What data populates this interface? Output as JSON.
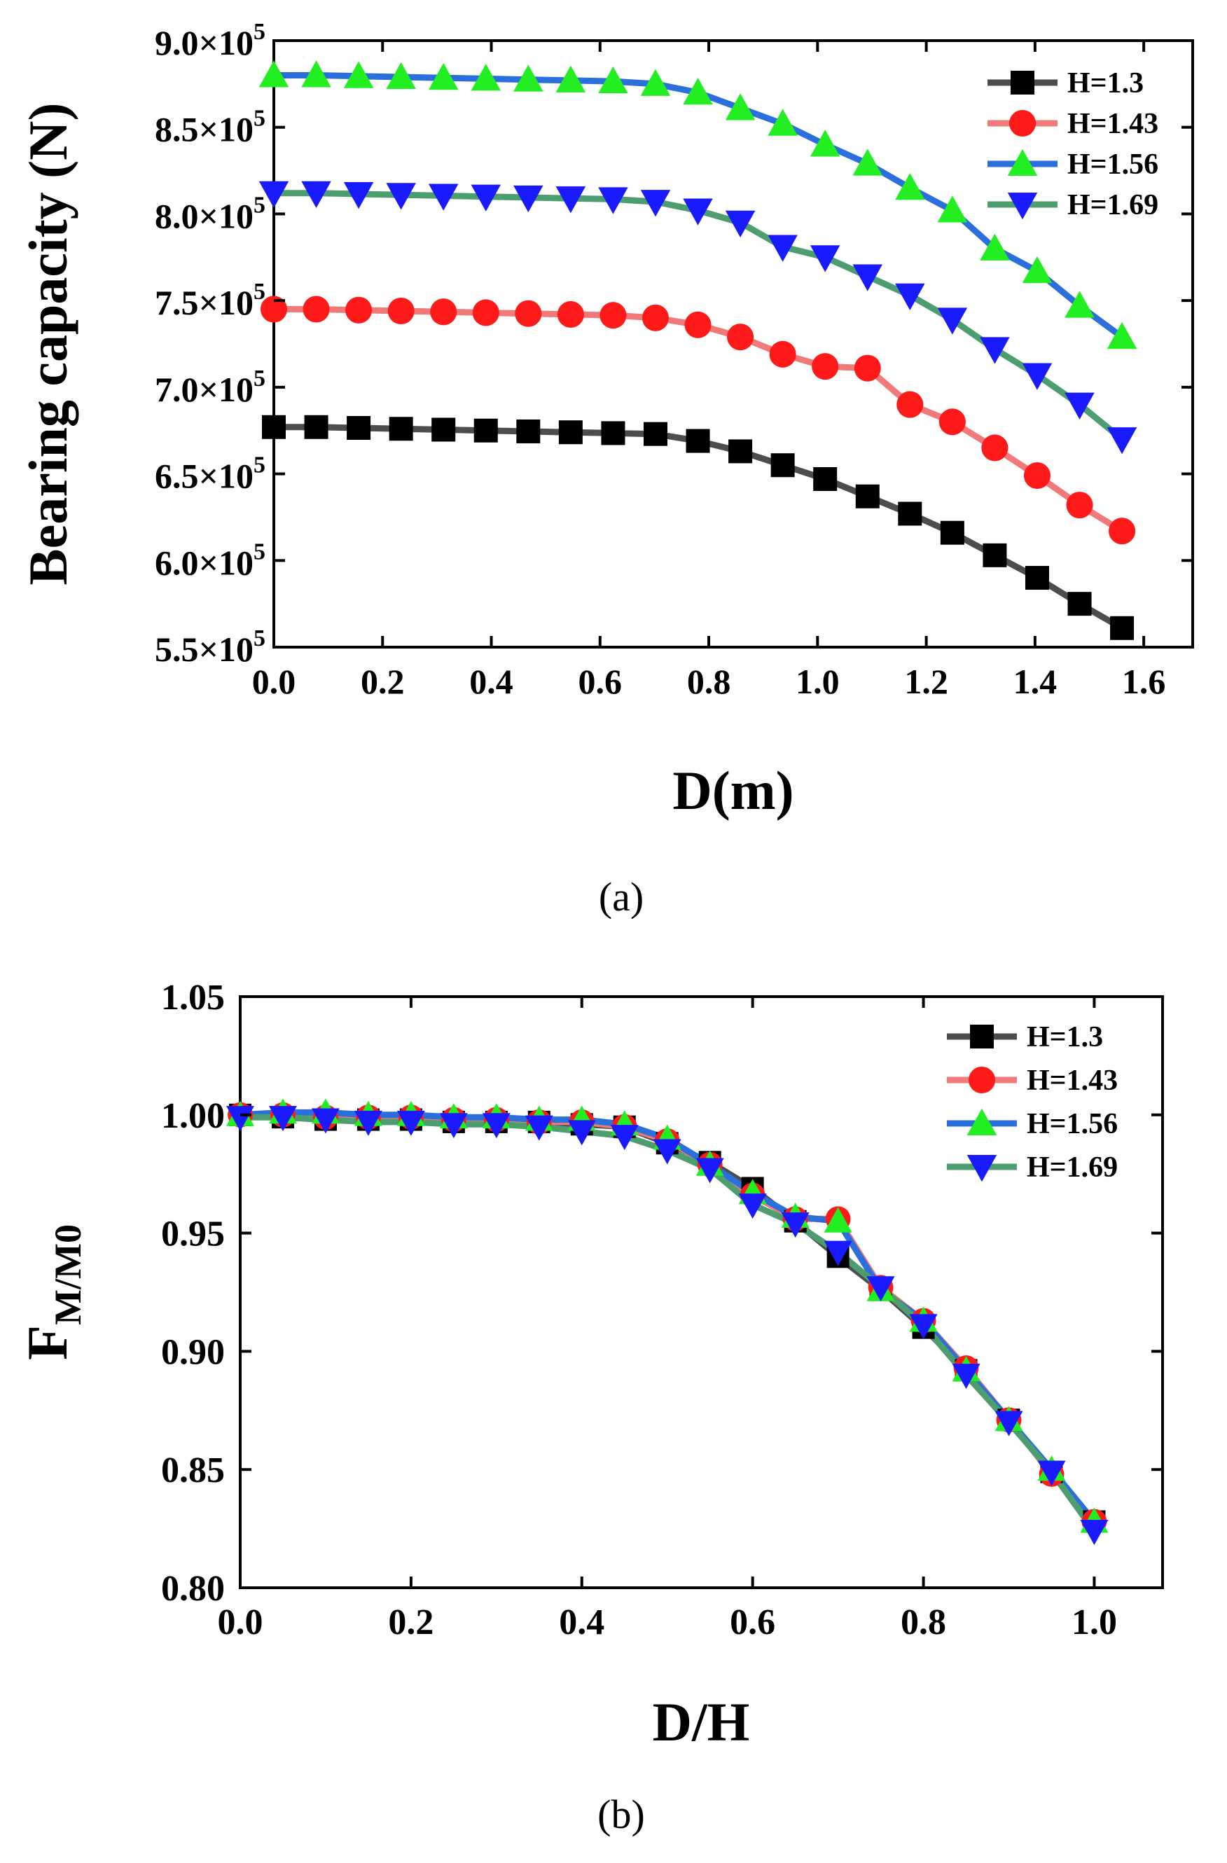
{
  "chart_data": [
    {
      "id": "a",
      "type": "line",
      "caption": "(a)",
      "xlabel": "D(m)",
      "ylabel": "Bearing capacity (N)",
      "xlim": [
        0,
        1.69
      ],
      "ylim": [
        550000,
        900000
      ],
      "x_ticks": [
        0.0,
        0.2,
        0.4,
        0.6,
        0.8,
        1.0,
        1.2,
        1.4,
        1.6
      ],
      "x_tick_labels": [
        "0.0",
        "0.2",
        "0.4",
        "0.6",
        "0.8",
        "1.0",
        "1.2",
        "1.4",
        "1.6"
      ],
      "y_ticks": [
        550000,
        600000,
        650000,
        700000,
        750000,
        800000,
        850000,
        900000
      ],
      "y_tick_mantissas": [
        "5.5",
        "6.0",
        "6.5",
        "7.0",
        "7.5",
        "8.0",
        "8.5",
        "9.0"
      ],
      "y_tick_base": "×10",
      "y_tick_exponent": "5",
      "legend_position": "top-right",
      "x": [
        0.0,
        0.078,
        0.156,
        0.234,
        0.312,
        0.39,
        0.468,
        0.546,
        0.624,
        0.702,
        0.78,
        0.858,
        0.936,
        1.014,
        1.092,
        1.17,
        1.248,
        1.326,
        1.404,
        1.482,
        1.56
      ],
      "series": [
        {
          "name": "H=1.3",
          "marker": "square",
          "line_color": "#4d4d4d",
          "marker_color": "#000000",
          "values": [
            677000,
            677000,
            676500,
            676000,
            675500,
            675000,
            674500,
            674000,
            673500,
            673000,
            669000,
            663000,
            655000,
            647000,
            637000,
            627000,
            616000,
            603000,
            590000,
            575000,
            561000
          ]
        },
        {
          "name": "H=1.43",
          "marker": "circle",
          "line_color": "#f07a7a",
          "marker_color": "#ff1a1a",
          "values": [
            745000,
            745000,
            744500,
            744000,
            743500,
            743000,
            742500,
            742000,
            741500,
            740000,
            736000,
            729000,
            719000,
            712000,
            711000,
            690000,
            680000,
            665000,
            649000,
            632000,
            617000
          ]
        },
        {
          "name": "H=1.56",
          "marker": "triangle-up",
          "line_color": "#2a6fdb",
          "marker_color": "#22ee22",
          "values": [
            880000,
            880000,
            879500,
            879000,
            878500,
            878000,
            877500,
            877000,
            876500,
            875000,
            870000,
            861000,
            852000,
            840000,
            829000,
            815000,
            802000,
            780000,
            767000,
            747000,
            729000
          ]
        },
        {
          "name": "H=1.69",
          "marker": "triangle-down",
          "line_color": "#4d9e6e",
          "marker_color": "#1a1aff",
          "values": [
            812000,
            812000,
            811500,
            811000,
            810500,
            810000,
            809500,
            809000,
            808500,
            807000,
            802000,
            795000,
            781000,
            775000,
            764000,
            753000,
            739000,
            722000,
            707000,
            690000,
            670000
          ]
        }
      ]
    },
    {
      "id": "b",
      "type": "line",
      "caption": "(b)",
      "xlabel": "D/H",
      "ylabel_main": "F",
      "ylabel_sub": "M/M0",
      "xlim": [
        0,
        1.08
      ],
      "ylim": [
        0.8,
        1.05
      ],
      "x_ticks": [
        0.0,
        0.2,
        0.4,
        0.6,
        0.8,
        1.0
      ],
      "x_tick_labels": [
        "0.0",
        "0.2",
        "0.4",
        "0.6",
        "0.8",
        "1.0"
      ],
      "y_ticks": [
        0.8,
        0.85,
        0.9,
        0.95,
        1.0,
        1.05
      ],
      "y_tick_labels": [
        "0.80",
        "0.85",
        "0.90",
        "0.95",
        "1.00",
        "1.05"
      ],
      "legend_position": "top-right",
      "x": [
        0.0,
        0.05,
        0.1,
        0.15,
        0.2,
        0.25,
        0.3,
        0.35,
        0.4,
        0.45,
        0.5,
        0.55,
        0.6,
        0.65,
        0.7,
        0.75,
        0.8,
        0.85,
        0.9,
        0.95,
        1.0
      ],
      "series": [
        {
          "name": "H=1.3",
          "marker": "square",
          "line_color": "#4d4d4d",
          "marker_color": "#000000",
          "values": [
            1.0,
            0.999,
            0.998,
            0.998,
            0.998,
            0.997,
            0.997,
            0.997,
            0.996,
            0.995,
            0.988,
            0.98,
            0.969,
            0.955,
            0.94,
            0.926,
            0.91,
            0.892,
            0.871,
            0.849,
            0.828
          ]
        },
        {
          "name": "H=1.43",
          "marker": "circle",
          "line_color": "#f07a7a",
          "marker_color": "#ff1a1a",
          "values": [
            1.0,
            1.0,
            0.999,
            0.999,
            0.999,
            0.998,
            0.998,
            0.997,
            0.997,
            0.995,
            0.989,
            0.979,
            0.966,
            0.956,
            0.956,
            0.927,
            0.913,
            0.893,
            0.871,
            0.848,
            0.828
          ]
        },
        {
          "name": "H=1.56",
          "marker": "triangle-up",
          "line_color": "#2a6fdb",
          "marker_color": "#22ee22",
          "values": [
            1.0,
            1.001,
            1.001,
            1.0,
            1.0,
            0.999,
            0.999,
            0.998,
            0.998,
            0.996,
            0.99,
            0.979,
            0.967,
            0.957,
            0.955,
            0.926,
            0.913,
            0.892,
            0.871,
            0.85,
            0.828
          ]
        },
        {
          "name": "H=1.69",
          "marker": "triangle-down",
          "line_color": "#4d9e6e",
          "marker_color": "#1a1aff",
          "values": [
            0.999,
            0.999,
            0.998,
            0.997,
            0.997,
            0.996,
            0.996,
            0.995,
            0.993,
            0.991,
            0.985,
            0.977,
            0.962,
            0.954,
            0.942,
            0.927,
            0.911,
            0.89,
            0.87,
            0.849,
            0.824
          ]
        }
      ]
    }
  ]
}
